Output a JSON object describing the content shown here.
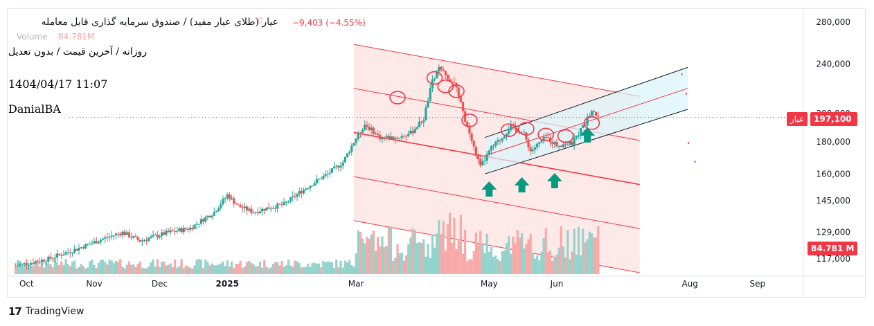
{
  "header": {
    "title": "عیار (طلای عیار مفید) / صندوق سرمایه گذاری قابل معامله",
    "change": "−9,403 (−4.55%)",
    "ohlc_faded": "0",
    "volume_label": "Volume",
    "volume_value": "84.781M",
    "subtitle": "روزانه / آخرین قیمت / بدون تعدیل",
    "datetime": "1404/04/17 11:07",
    "author": "DanialBA"
  },
  "tags": {
    "symbol": "عیار",
    "last_price": "197,100",
    "volume": "84.781 M"
  },
  "logo": {
    "mark": "17",
    "text": "TradingView"
  },
  "colors": {
    "up": "#26a69a",
    "down": "#ef5350",
    "up_vol": "#93d3cc",
    "down_vol": "#f7a9a7",
    "channel_fill": "#fde2e2",
    "channel_line": "#f23645",
    "rising_fill": "#d9f4fa",
    "arrow": "#089981"
  },
  "chart_data": {
    "type": "candlestick",
    "title": "",
    "xlabel": "",
    "ylabel": "",
    "y_scale": "log",
    "ylim": [
      110000,
      290000
    ],
    "y_ticks": [
      "280,000",
      "240,000",
      "200,000",
      "180,000",
      "160,000",
      "145,000",
      "129,000",
      "117,000"
    ],
    "y_tick_values": [
      280000,
      240000,
      200000,
      180000,
      160000,
      145000,
      129000,
      117000
    ],
    "x_tick_labels": [
      "Oct",
      "Nov",
      "Dec",
      "2025",
      "Mar",
      "May",
      "Jun",
      "Aug",
      "Sep"
    ],
    "x_tick_days": [
      0,
      31,
      61,
      92,
      151,
      212,
      243,
      304,
      335
    ],
    "x_range_days": [
      -9,
      356
    ],
    "last_price": 197100,
    "last_volume": "84.781M",
    "anchors": [
      {
        "day": -5,
        "price": 114000
      },
      {
        "day": 10,
        "price": 117000
      },
      {
        "day": 22,
        "price": 121000
      },
      {
        "day": 35,
        "price": 126000
      },
      {
        "day": 44,
        "price": 129000
      },
      {
        "day": 52,
        "price": 125000
      },
      {
        "day": 65,
        "price": 129000
      },
      {
        "day": 75,
        "price": 131000
      },
      {
        "day": 86,
        "price": 139000
      },
      {
        "day": 92,
        "price": 148000
      },
      {
        "day": 97,
        "price": 142000
      },
      {
        "day": 104,
        "price": 139000
      },
      {
        "day": 110,
        "price": 141000
      },
      {
        "day": 118,
        "price": 143000
      },
      {
        "day": 128,
        "price": 152000
      },
      {
        "day": 138,
        "price": 160000
      },
      {
        "day": 145,
        "price": 167000
      },
      {
        "day": 150,
        "price": 180000
      },
      {
        "day": 155,
        "price": 192000
      },
      {
        "day": 162,
        "price": 183000
      },
      {
        "day": 170,
        "price": 183000
      },
      {
        "day": 176,
        "price": 186000
      },
      {
        "day": 182,
        "price": 196000
      },
      {
        "day": 186,
        "price": 225000
      },
      {
        "day": 189,
        "price": 236000
      },
      {
        "day": 193,
        "price": 228000
      },
      {
        "day": 197,
        "price": 222000
      },
      {
        "day": 200,
        "price": 200000
      },
      {
        "day": 205,
        "price": 176000
      },
      {
        "day": 208,
        "price": 164000
      },
      {
        "day": 213,
        "price": 176000
      },
      {
        "day": 218,
        "price": 183000
      },
      {
        "day": 222,
        "price": 191000
      },
      {
        "day": 228,
        "price": 185000
      },
      {
        "day": 231,
        "price": 174000
      },
      {
        "day": 238,
        "price": 183000
      },
      {
        "day": 243,
        "price": 178000
      },
      {
        "day": 250,
        "price": 179000
      },
      {
        "day": 256,
        "price": 193000
      },
      {
        "day": 259,
        "price": 202000
      },
      {
        "day": 262,
        "price": 197100
      }
    ],
    "volume": {
      "unit": "M",
      "max_shown": 100
    }
  },
  "drawings": {
    "falling_channel": {
      "start": {
        "day": 150,
        "price": 258000
      },
      "end": {
        "day": 281,
        "price": 213000
      },
      "levels": [
        0,
        1,
        2,
        3,
        4
      ],
      "step_factor": 0.85
    },
    "rising_channel": {
      "lower_start": {
        "day": 210,
        "price": 160000
      },
      "lower_end": {
        "day": 303,
        "price": 203000
      },
      "upper_start": {
        "day": 210,
        "price": 183000
      },
      "upper_end": {
        "day": 303,
        "price": 237000
      }
    },
    "arrows_days": [
      212,
      227,
      242,
      257
    ],
    "circles": [
      {
        "day": 170,
        "price": 212000
      },
      {
        "day": 187,
        "price": 228000
      },
      {
        "day": 192,
        "price": 221000
      },
      {
        "day": 197,
        "price": 217000
      },
      {
        "day": 203,
        "price": 195000
      },
      {
        "day": 221,
        "price": 188000
      },
      {
        "day": 229,
        "price": 189000
      },
      {
        "day": 238,
        "price": 185000
      },
      {
        "day": 247,
        "price": 184000
      },
      {
        "day": 259,
        "price": 193000
      }
    ]
  }
}
